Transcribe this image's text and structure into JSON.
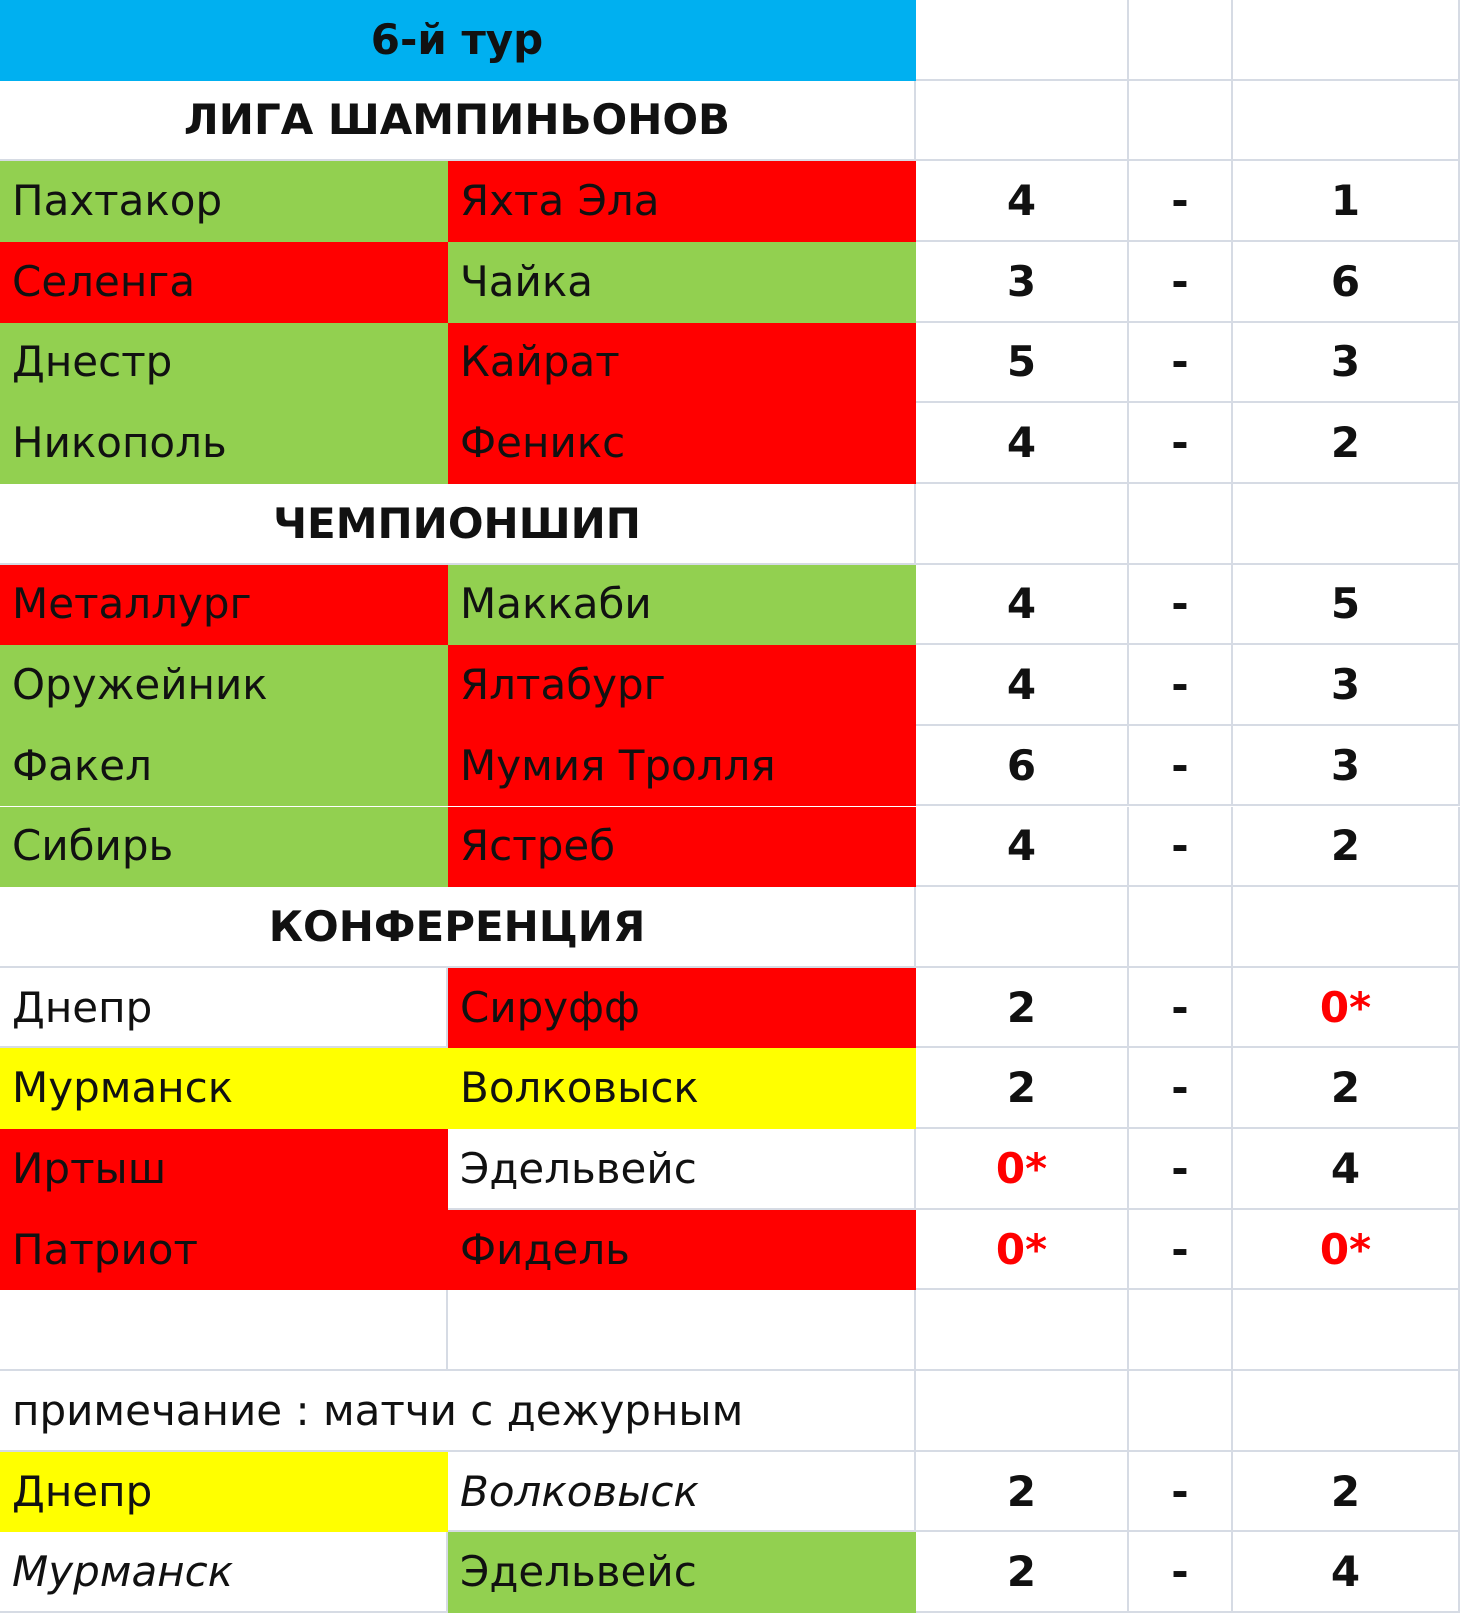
{
  "title": "6-й тур",
  "title_fill": "#00b0f0",
  "sections": [
    {
      "title": "ЛИГА ШАМПИНЬОНОВ",
      "matches": [
        {
          "home": "Пахтакор",
          "home_fill": "#92d050",
          "away": "Яхта Эла",
          "away_fill": "#ff0000",
          "home_score": 4,
          "sep": "-",
          "away_score": 1
        },
        {
          "home": "Селенга",
          "home_fill": "#ff0000",
          "away": "Чайка",
          "away_fill": "#92d050",
          "home_score": 3,
          "sep": "-",
          "away_score": 6
        },
        {
          "home": "Днестр",
          "home_fill": "#92d050",
          "away": "Кайрат",
          "away_fill": "#ff0000",
          "home_score": 5,
          "sep": "-",
          "away_score": 3
        },
        {
          "home": "Никополь",
          "home_fill": "#92d050",
          "away": "Феникс",
          "away_fill": "#ff0000",
          "home_score": 4,
          "sep": "-",
          "away_score": 2
        }
      ]
    },
    {
      "title": "ЧЕМПИОНШИП",
      "matches": [
        {
          "home": "Металлург",
          "home_fill": "#ff0000",
          "away": "Маккаби",
          "away_fill": "#92d050",
          "home_score": 4,
          "sep": "-",
          "away_score": 5
        },
        {
          "home": "Оружейник",
          "home_fill": "#92d050",
          "away": "Ялтабург",
          "away_fill": "#ff0000",
          "home_score": 4,
          "sep": "-",
          "away_score": 3
        },
        {
          "home": "Факел",
          "home_fill": "#92d050",
          "away": "Мумия Тролля",
          "away_fill": "#ff0000",
          "home_score": 6,
          "sep": "-",
          "away_score": 3
        },
        {
          "home": "Сибирь",
          "home_fill": "#92d050",
          "away": "Ястреб",
          "away_fill": "#ff0000",
          "home_score": 4,
          "sep": "-",
          "away_score": 2
        }
      ]
    },
    {
      "title": "КОНФЕРЕНЦИЯ",
      "matches": [
        {
          "home": "Днепр",
          "away": "Сируфф",
          "away_fill": "#ff0000",
          "home_score": 2,
          "sep": "-",
          "away_score": "0*",
          "away_score_color": "#ff0000"
        },
        {
          "home": "Мурманск",
          "home_fill": "#ffff00",
          "away": "Волковыск",
          "away_fill": "#ffff00",
          "home_score": 2,
          "sep": "-",
          "away_score": 2
        },
        {
          "home": "Иртыш",
          "home_fill": "#ff0000",
          "away": "Эдельвейс",
          "home_score": "0*",
          "home_score_color": "#ff0000",
          "sep": "-",
          "away_score": 4
        },
        {
          "home": "Патриот",
          "home_fill": "#ff0000",
          "away": "Фидель",
          "away_fill": "#ff0000",
          "home_score": "0*",
          "home_score_color": "#ff0000",
          "sep": "-",
          "away_score": "0*",
          "away_score_color": "#ff0000"
        }
      ]
    }
  ],
  "note": {
    "text": "примечание : матчи с дежурным",
    "matches": [
      {
        "home": "Днепр",
        "home_fill": "#ffff00",
        "away": "Волковыск",
        "away_italic": true,
        "home_score": 2,
        "sep": "-",
        "away_score": 2
      },
      {
        "home": "Мурманск",
        "home_italic": true,
        "away": "Эдельвейс",
        "away_fill": "#92d050",
        "home_score": 2,
        "sep": "-",
        "away_score": 4
      }
    ]
  }
}
